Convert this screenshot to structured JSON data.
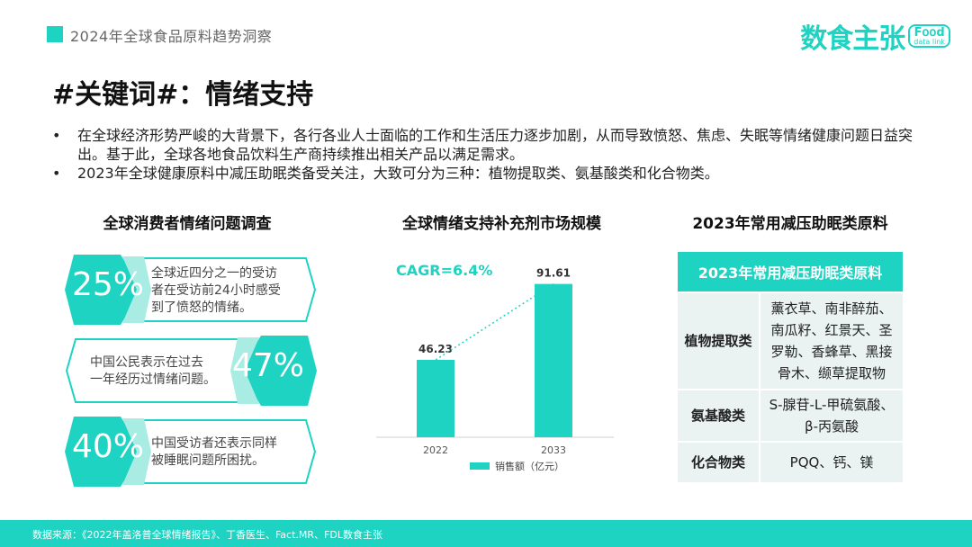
{
  "header": {
    "section_title": "2024年全球食品原料趋势洞察",
    "logo_text": "数食主张",
    "logo_badge_top": "F𝗈𝗈d",
    "logo_badge_bottom": "data link",
    "accent_color": "#1ed3c1"
  },
  "page_title": "#关键词#：情绪支持",
  "bullets": [
    "在全球经济形势严峻的大背景下，各行各业人士面临的工作和生活压力逐步加剧，从而导致愤怒、焦虑、失眠等情绪健康问题日益突出。基于此，全球各地食品饮料生产商持续推出相关产品以满足需求。",
    "2023年全球健康原料中减压助眠类备受关注，大致可分为三种：植物提取类、氨基酸类和化合物类。"
  ],
  "bullet_symbol": "•",
  "survey": {
    "title": "全球消费者情绪问题调查",
    "stats": [
      {
        "value": "25%",
        "text_lines": [
          "全球近四分之一的受访",
          "者在受访前24小时感受",
          "到了愤怒的情绪。"
        ]
      },
      {
        "value": "47%",
        "text_lines": [
          "中国公民表示在过去",
          "一年经历过情绪问题。"
        ]
      },
      {
        "value": "40%",
        "text_lines": [
          "中国受访者还表示同样",
          "被睡眠问题所困扰。"
        ]
      }
    ]
  },
  "market": {
    "title": "全球情绪支持补充剂市场规模",
    "cagr_label": "CAGR=6.4%",
    "legend_label": "销售额（亿元）"
  },
  "chart_data": {
    "type": "bar",
    "categories": [
      "2022",
      "2033"
    ],
    "series": [
      {
        "name": "销售额（亿元）",
        "values": [
          46.23,
          91.61
        ]
      }
    ],
    "value_labels": [
      "46.23",
      "91.61"
    ],
    "annotation": "CAGR=6.4%",
    "ylim": [
      0,
      100
    ],
    "grid": false,
    "legend_position": "bottom",
    "bar_color": "#1ed3c1"
  },
  "ingredients": {
    "title": "2023年常用减压助眠类原料",
    "table_header": "2023年常用减压助眠类原料",
    "rows": [
      {
        "category": "植物提取类",
        "items_lines": [
          "薰衣草、南非醉茄、",
          "南瓜籽、红景天、圣",
          "罗勒、香蜂草、黑接",
          "骨木、缬草提取物"
        ]
      },
      {
        "category": "氨基酸类",
        "items_lines": [
          "S-腺苷-L-甲硫氨酸、",
          "β-丙氨酸"
        ]
      },
      {
        "category": "化合物类",
        "items_lines": [
          "PQQ、钙、镁"
        ]
      }
    ]
  },
  "footer": {
    "source": "数据来源：《2022年盖洛普全球情绪报告》、丁香医生、Fact.MR、FDL数食主张"
  }
}
